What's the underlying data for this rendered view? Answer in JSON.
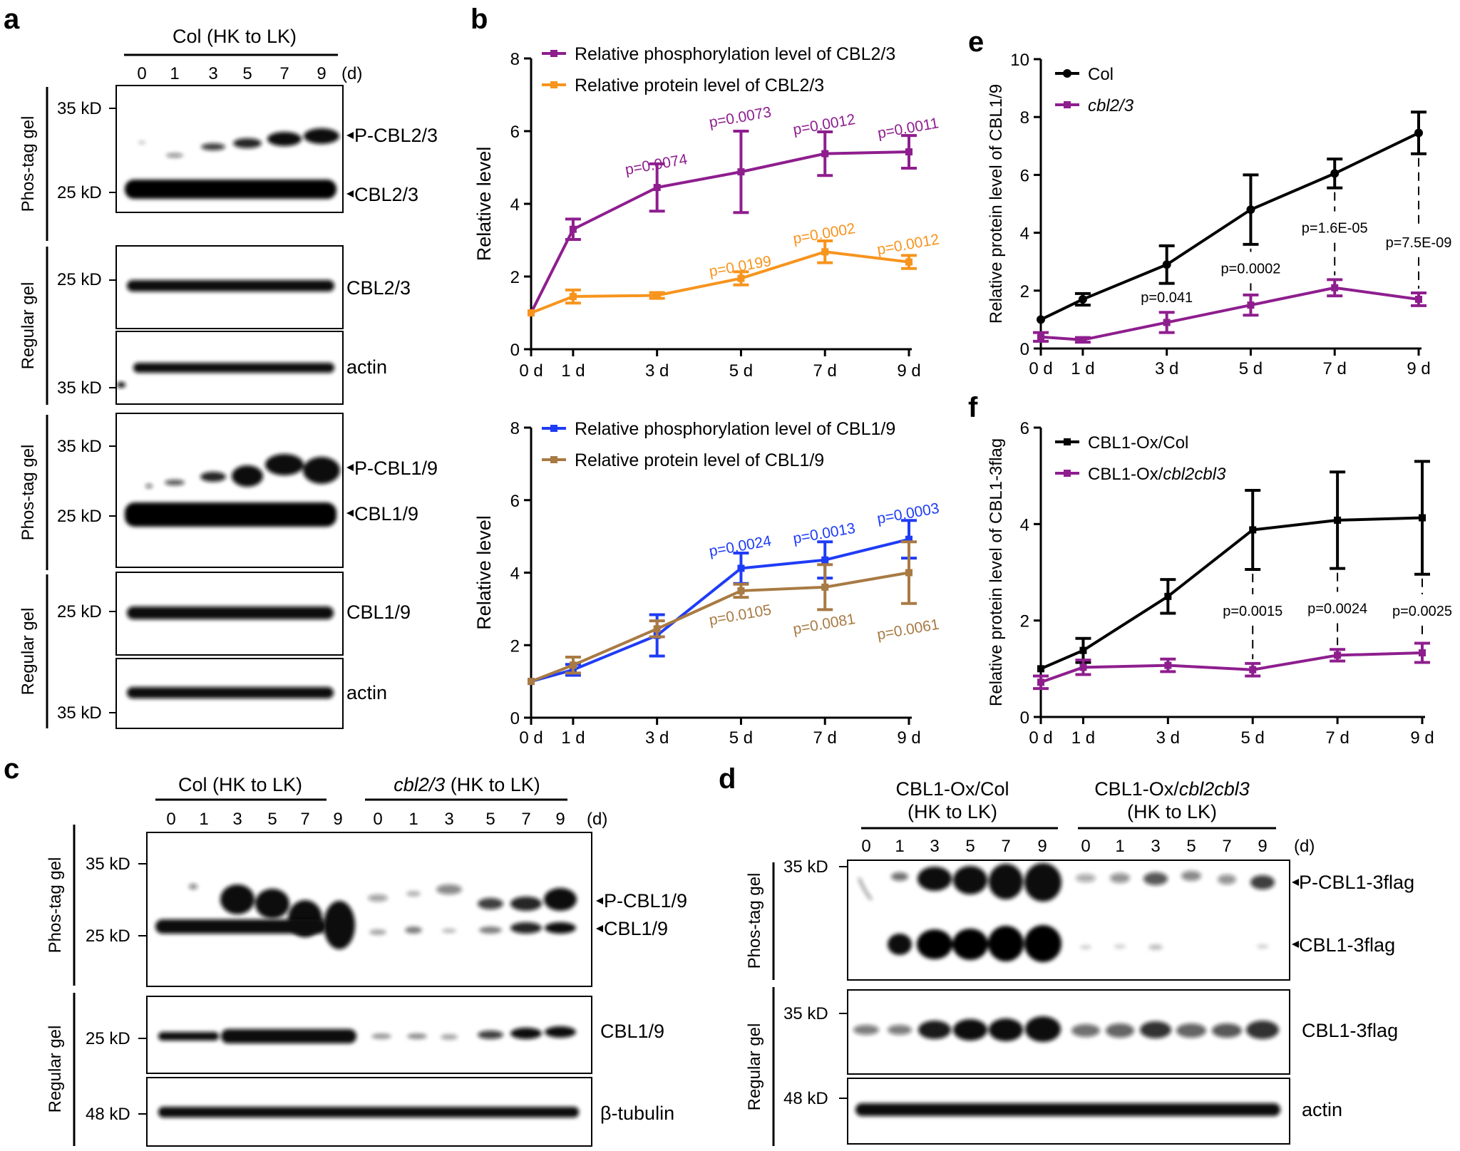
{
  "panel_labels": {
    "a": "a",
    "b": "b",
    "c": "c",
    "d": "d",
    "e": "e",
    "f": "f"
  },
  "colors": {
    "purple": "#8e1e8e",
    "orange": "#f7941d",
    "blue": "#1f3cf5",
    "brown": "#a87a44",
    "black": "#000000"
  },
  "blot_a": {
    "header": "Col (HK to LK)",
    "days": [
      "0",
      "1",
      "3",
      "5",
      "7",
      "9"
    ],
    "day_unit": "(d)",
    "gel_phos": "Phos-tag gel",
    "gel_regular": "Regular gel",
    "mw": {
      "kd35": "35 kD",
      "kd25": "25 kD"
    },
    "labels": {
      "p_cbl23": "P-CBL2/3",
      "cbl23": "CBL2/3",
      "cbl23_reg": "CBL2/3",
      "actin1": "actin",
      "p_cbl19": "P-CBL1/9",
      "cbl19": "CBL1/9",
      "cbl19_reg": "CBL1/9",
      "actin2": "actin"
    }
  },
  "blot_c": {
    "header_col": "Col (HK to LK)",
    "header_mut_italic": "cbl2/3",
    "header_mut_rest": " (HK to LK)",
    "days": [
      "0",
      "1",
      "3",
      "5",
      "7",
      "9"
    ],
    "day_unit": "(d)",
    "gel_phos": "Phos-tag gel",
    "gel_regular": "Regular gel",
    "mw": {
      "kd35": "35 kD",
      "kd25": "25 kD",
      "kd25b": "25 kD",
      "kd48": "48 kD"
    },
    "labels": {
      "p_cbl19": "P-CBL1/9",
      "cbl19": "CBL1/9",
      "cbl19_reg": "CBL1/9",
      "tubulin": "β-tubulin"
    }
  },
  "blot_d": {
    "header_col_1": "CBL1-Ox/Col",
    "header_col_2": "(HK to LK)",
    "header_mut_1a": "CBL1-Ox/",
    "header_mut_1b": "cbl2cbl3",
    "header_mut_2": "(HK to LK)",
    "days": [
      "0",
      "1",
      "3",
      "5",
      "7",
      "9"
    ],
    "day_unit": "(d)",
    "gel_phos": "Phos-tag gel",
    "gel_regular": "Regular gel",
    "mw": {
      "kd35": "35 kD",
      "kd35b": "35 kD",
      "kd48": "48 kD"
    },
    "labels": {
      "p_cbl1": "P-CBL1-3flag",
      "cbl1": "CBL1-3flag",
      "cbl1_reg": "CBL1-3flag",
      "actin": "actin"
    }
  },
  "chart_data": [
    {
      "id": "b_top",
      "type": "line",
      "categories": [
        "0 d",
        "1 d",
        "3 d",
        "5 d",
        "7 d",
        "9 d"
      ],
      "x": [
        0,
        1,
        3,
        5,
        7,
        9
      ],
      "ylabel": "Relative level",
      "ylim": [
        0,
        8
      ],
      "yticks": [
        "0",
        "2",
        "4",
        "6",
        "8"
      ],
      "legend_position": "top-left",
      "series": [
        {
          "name": "Relative phosphorylation level of CBL2/3",
          "color": "#8e1e8e",
          "values": [
            1.0,
            3.3,
            4.45,
            4.88,
            5.38,
            5.43
          ],
          "errors": [
            0.0,
            0.28,
            0.65,
            1.12,
            0.6,
            0.45
          ]
        },
        {
          "name": "Relative protein level of CBL2/3",
          "color": "#f7941d",
          "values": [
            1.0,
            1.45,
            1.48,
            1.95,
            2.68,
            2.4
          ],
          "errors": [
            0.0,
            0.18,
            0.08,
            0.18,
            0.3,
            0.18
          ]
        }
      ],
      "annotations": [
        {
          "text": "p=0.0074",
          "x": 3,
          "y": 4.95,
          "color": "#8e1e8e"
        },
        {
          "text": "p=0.0073",
          "x": 5,
          "y": 6.25,
          "color": "#8e1e8e"
        },
        {
          "text": "p=0.0012",
          "x": 7,
          "y": 6.05,
          "color": "#8e1e8e"
        },
        {
          "text": "p=0.0011",
          "x": 9,
          "y": 5.95,
          "color": "#8e1e8e"
        },
        {
          "text": "p=0.0199",
          "x": 5,
          "y": 2.15,
          "color": "#f7941d"
        },
        {
          "text": "p=0.0002",
          "x": 7,
          "y": 3.05,
          "color": "#f7941d"
        },
        {
          "text": "p=0.0012",
          "x": 9,
          "y": 2.75,
          "color": "#f7941d"
        }
      ]
    },
    {
      "id": "b_bottom",
      "type": "line",
      "categories": [
        "0 d",
        "1 d",
        "3 d",
        "5 d",
        "7 d",
        "9 d"
      ],
      "x": [
        0,
        1,
        3,
        5,
        7,
        9
      ],
      "ylabel": "Relative level",
      "ylim": [
        0,
        8
      ],
      "yticks": [
        "0",
        "2",
        "4",
        "6",
        "8"
      ],
      "legend_position": "top-left",
      "series": [
        {
          "name": "Relative phosphorylation level of CBL1/9",
          "color": "#1f3cf5",
          "values": [
            1.0,
            1.32,
            2.27,
            4.12,
            4.35,
            4.92
          ],
          "errors": [
            0.0,
            0.15,
            0.57,
            0.42,
            0.5,
            0.52
          ]
        },
        {
          "name": "Relative protein level of CBL1/9",
          "color": "#a87a44",
          "values": [
            1.0,
            1.45,
            2.45,
            3.5,
            3.6,
            4.0
          ],
          "errors": [
            0.0,
            0.22,
            0.22,
            0.18,
            0.62,
            0.85
          ]
        }
      ],
      "annotations": [
        {
          "text": "p=0.0024",
          "x": 5,
          "y": 4.6,
          "color": "#1f3cf5"
        },
        {
          "text": "p=0.0013",
          "x": 7,
          "y": 4.95,
          "color": "#1f3cf5"
        },
        {
          "text": "p=0.0003",
          "x": 9,
          "y": 5.5,
          "color": "#1f3cf5"
        },
        {
          "text": "p=0.0105",
          "x": 5,
          "y": 2.7,
          "color": "#a87a44"
        },
        {
          "text": "p=0.0081",
          "x": 7,
          "y": 2.45,
          "color": "#a87a44"
        },
        {
          "text": "p=0.0061",
          "x": 9,
          "y": 2.3,
          "color": "#a87a44"
        }
      ]
    },
    {
      "id": "e",
      "type": "line",
      "categories": [
        "0 d",
        "1 d",
        "3 d",
        "5 d",
        "7 d",
        "9 d"
      ],
      "x": [
        0,
        1,
        3,
        5,
        7,
        9
      ],
      "ylabel": "Relative protein level of CBL1/9",
      "ylim": [
        0,
        10
      ],
      "yticks": [
        "0",
        "2",
        "4",
        "6",
        "8",
        "10"
      ],
      "legend_position": "top-left",
      "series": [
        {
          "name": "Col",
          "italic": false,
          "color": "#000000",
          "values": [
            1.0,
            1.7,
            2.9,
            4.8,
            6.05,
            7.45
          ],
          "errors": [
            0.0,
            0.2,
            0.65,
            1.2,
            0.5,
            0.72
          ]
        },
        {
          "name": "cbl2/3",
          "italic": true,
          "color": "#8e1e8e",
          "values": [
            0.4,
            0.3,
            0.9,
            1.5,
            2.1,
            1.7
          ],
          "errors": [
            0.15,
            0.08,
            0.35,
            0.35,
            0.28,
            0.22
          ]
        }
      ],
      "annotations": [
        {
          "text": "p=0.041",
          "x": 3,
          "y": 1.6,
          "color": "#000000"
        },
        {
          "text": "p=0.0002",
          "x": 5,
          "y": 2.6,
          "color": "#000000"
        },
        {
          "text": "p=1.6E-05",
          "x": 7,
          "y": 4.0,
          "color": "#000000"
        },
        {
          "text": "p=7.5E-09",
          "x": 9,
          "y": 3.5,
          "color": "#000000"
        }
      ]
    },
    {
      "id": "f",
      "type": "line",
      "categories": [
        "0 d",
        "1 d",
        "3 d",
        "5 d",
        "7 d",
        "9 d"
      ],
      "x": [
        0,
        1,
        3,
        5,
        7,
        9
      ],
      "ylabel": "Relative protein level of CBL1-3flag",
      "ylim": [
        0,
        6
      ],
      "yticks": [
        "0",
        "2",
        "4",
        "6"
      ],
      "legend_position": "top-left",
      "series": [
        {
          "name_prefix": "CBL1-Ox/",
          "name_italic": "",
          "name_plain": "Col",
          "color": "#000000",
          "values": [
            1.0,
            1.38,
            2.5,
            3.88,
            4.08,
            4.13
          ],
          "errors": [
            0.0,
            0.25,
            0.35,
            0.82,
            1.0,
            1.17
          ]
        },
        {
          "name_prefix": "CBL1-Ox/",
          "name_italic": "cbl2cbl3",
          "name_plain": "",
          "color": "#8e1e8e",
          "values": [
            0.72,
            1.03,
            1.07,
            0.98,
            1.28,
            1.33
          ],
          "errors": [
            0.13,
            0.15,
            0.13,
            0.13,
            0.12,
            0.2
          ]
        }
      ],
      "annotations": [
        {
          "text": "p=0.0015",
          "x": 5,
          "y": 2.1,
          "color": "#000000"
        },
        {
          "text": "p=0.0024",
          "x": 7,
          "y": 2.15,
          "color": "#000000"
        },
        {
          "text": "p=0.0025",
          "x": 9,
          "y": 2.1,
          "color": "#000000"
        }
      ]
    }
  ]
}
